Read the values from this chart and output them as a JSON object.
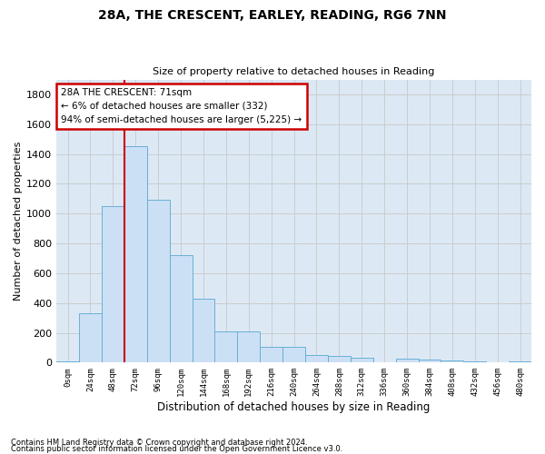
{
  "title": "28A, THE CRESCENT, EARLEY, READING, RG6 7NN",
  "subtitle": "Size of property relative to detached houses in Reading",
  "xlabel": "Distribution of detached houses by size in Reading",
  "ylabel": "Number of detached properties",
  "footnote1": "Contains HM Land Registry data © Crown copyright and database right 2024.",
  "footnote2": "Contains public sector information licensed under the Open Government Licence v3.0.",
  "bar_labels": [
    "0sqm",
    "24sqm",
    "48sqm",
    "72sqm",
    "96sqm",
    "120sqm",
    "144sqm",
    "168sqm",
    "192sqm",
    "216sqm",
    "240sqm",
    "264sqm",
    "288sqm",
    "312sqm",
    "336sqm",
    "360sqm",
    "384sqm",
    "408sqm",
    "432sqm",
    "456sqm",
    "480sqm"
  ],
  "bar_values": [
    10,
    330,
    1050,
    1450,
    1090,
    720,
    430,
    210,
    210,
    105,
    105,
    50,
    45,
    35,
    5,
    25,
    20,
    15,
    10,
    2,
    8
  ],
  "bar_color": "#cce0f5",
  "bar_edge_color": "#6aaed6",
  "ylim": [
    0,
    1900
  ],
  "yticks": [
    0,
    200,
    400,
    600,
    800,
    1000,
    1200,
    1400,
    1600,
    1800
  ],
  "annotation_line1": "28A THE CRESCENT: 71sqm",
  "annotation_line2": "← 6% of detached houses are smaller (332)",
  "annotation_line3": "94% of semi-detached houses are larger (5,225) →",
  "annotation_box_color": "#ffffff",
  "annotation_border_color": "#cc0000",
  "vline_color": "#cc0000",
  "vline_x": 2.5,
  "grid_color": "#cccccc",
  "background_color": "#dce9f5",
  "fig_width": 6.0,
  "fig_height": 5.0,
  "dpi": 100
}
